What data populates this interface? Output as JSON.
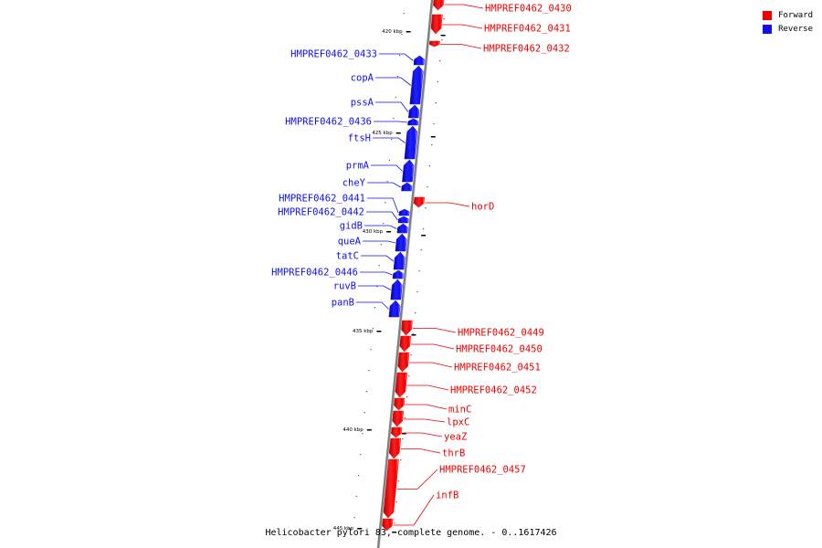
{
  "caption": "Helicobacter pylori 83, complete genome. - 0..1617426",
  "legend": [
    {
      "label": "Forward",
      "color": "#ee0000"
    },
    {
      "label": "Reverse",
      "color": "#1010ee"
    }
  ],
  "colors": {
    "forward": "#ee0000",
    "reverse": "#1010ee",
    "backbone": "#808080"
  },
  "ticks": [
    "420 kbp",
    "425 kbp",
    "430 kbp",
    "435 kbp",
    "440 kbp",
    "445 kbp"
  ],
  "genes": [
    {
      "name": "HMPREF0462_0430",
      "strand": "forward"
    },
    {
      "name": "HMPREF0462_0431",
      "strand": "forward"
    },
    {
      "name": "HMPREF0462_0432",
      "strand": "forward"
    },
    {
      "name": "HMPREF0462_0433",
      "strand": "reverse"
    },
    {
      "name": "copA",
      "strand": "reverse"
    },
    {
      "name": "pssA",
      "strand": "reverse"
    },
    {
      "name": "HMPREF0462_0436",
      "strand": "reverse"
    },
    {
      "name": "ftsH",
      "strand": "reverse"
    },
    {
      "name": "prmA",
      "strand": "reverse"
    },
    {
      "name": "cheY",
      "strand": "reverse"
    },
    {
      "name": "horD",
      "strand": "forward"
    },
    {
      "name": "HMPREF0462_0441",
      "strand": "reverse"
    },
    {
      "name": "HMPREF0462_0442",
      "strand": "reverse"
    },
    {
      "name": "gidB",
      "strand": "reverse"
    },
    {
      "name": "queA",
      "strand": "reverse"
    },
    {
      "name": "tatC",
      "strand": "reverse"
    },
    {
      "name": "HMPREF0462_0446",
      "strand": "reverse"
    },
    {
      "name": "ruvB",
      "strand": "reverse"
    },
    {
      "name": "panB",
      "strand": "reverse"
    },
    {
      "name": "HMPREF0462_0449",
      "strand": "forward"
    },
    {
      "name": "HMPREF0462_0450",
      "strand": "forward"
    },
    {
      "name": "HMPREF0462_0451",
      "strand": "forward"
    },
    {
      "name": "HMPREF0462_0452",
      "strand": "forward"
    },
    {
      "name": "minC",
      "strand": "forward"
    },
    {
      "name": "lpxC",
      "strand": "forward"
    },
    {
      "name": "yeaZ",
      "strand": "forward"
    },
    {
      "name": "thrB",
      "strand": "forward"
    },
    {
      "name": "HMPREF0462_0457",
      "strand": "forward"
    },
    {
      "name": "infB",
      "strand": "forward"
    }
  ]
}
